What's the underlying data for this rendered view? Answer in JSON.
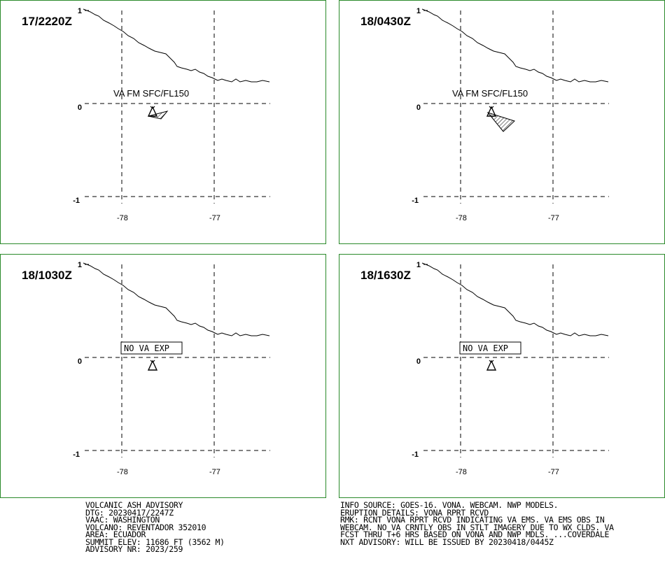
{
  "panels": [
    {
      "time": "17/2220Z",
      "label": "VA FM SFC/FL150",
      "label_style": "plain",
      "ash": "small"
    },
    {
      "time": "18/0430Z",
      "label": "VA FM SFC/FL150",
      "label_style": "plain",
      "ash": "large"
    },
    {
      "time": "18/1030Z",
      "label": "NO VA EXP",
      "label_style": "boxed",
      "ash": "none"
    },
    {
      "time": "18/1630Z",
      "label": "NO VA EXP",
      "label_style": "boxed",
      "ash": "none"
    }
  ],
  "axes": {
    "lat_labels": [
      "1",
      "0",
      "-1"
    ],
    "lon_labels": [
      "-78",
      "-77"
    ]
  },
  "volcano_marker": "triangle-volcano-icon",
  "colors": {
    "panel_border": "#2a8a2a",
    "lines": "#000000"
  },
  "advisory_left": [
    "VOLCANIC ASH ADVISORY",
    "DTG: 20230417/2247Z",
    "VAAC: WASHINGTON",
    "VOLCANO: REVENTADOR 352010",
    "AREA: ECUADOR",
    "SUMMIT ELEV: 11686 FT (3562 M)",
    "ADVISORY NR: 2023/259"
  ],
  "advisory_right": [
    "INFO SOURCE: GOES-16. VONA. WEBCAM. NWP MODELS.",
    "ERUPTION DETAILS: VONA RPRT RCVD",
    "RMK: RCNT VONA RPRT RCVD INDICATING VA EMS. VA EMS OBS IN",
    "WEBCAM. NO VA CRNTLY OBS IN STLT IMAGERY DUE TO WX CLDS. VA",
    "FCST THRU T+6 HRS BASED ON VONA AND NWP MDLS. ...COVERDALE",
    "NXT ADVISORY: WILL BE ISSUED BY 20230418/0445Z"
  ]
}
